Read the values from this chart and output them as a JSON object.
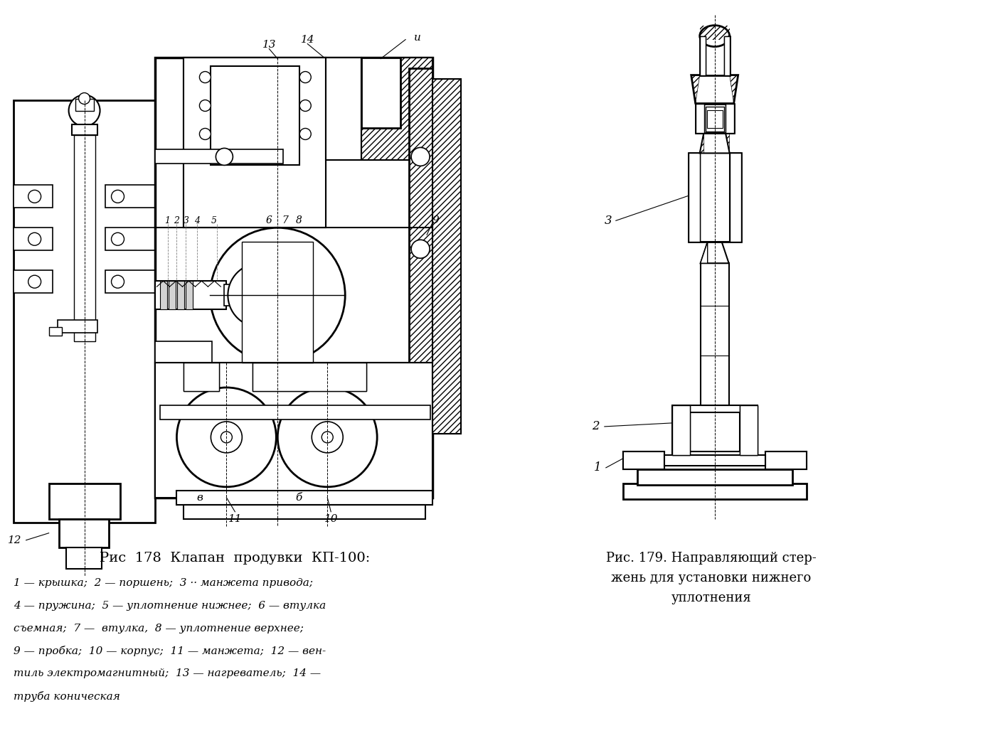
{
  "bg_color": "#ffffff",
  "fig_width": 13.89,
  "fig_height": 10.52,
  "dpi": 100,
  "title1": "Рис  178  Клапан  продувки  КП-100:",
  "cap1": "1 — крышка;  2 — поршень;  3 ·· манжета привода;",
  "cap2": "4 — пружина;  5 — уплотнение нижнее;  6 — втулка",
  "cap3": "съемная;  7 —  втулка,  8 — уплотнение верхнее;",
  "cap4": "9 — пробка;  10 — корпус;  11 — манжета;  12 — вен-",
  "cap5": "тиль электромагнитный;  13 — нагреватель;  14 —",
  "cap6": "труба коническая",
  "t2l1": "Рис. 179. Направляющий стер-",
  "t2l2": "жень для установки нижнего",
  "t2l3": "уплотнения"
}
